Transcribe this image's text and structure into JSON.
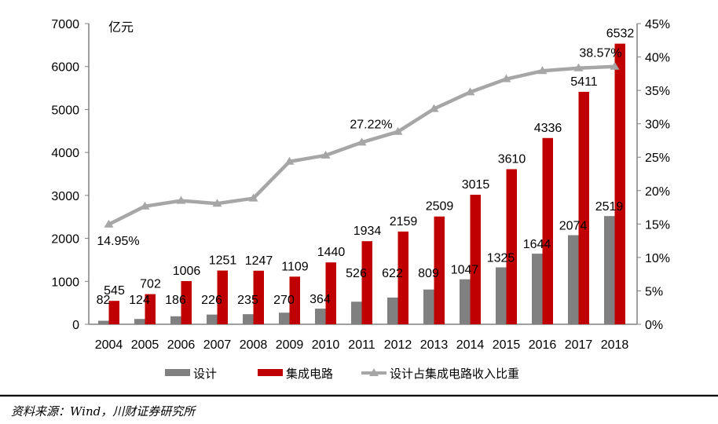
{
  "chart_data": {
    "type": "bar",
    "unit_label": "亿元",
    "categories": [
      "2004",
      "2005",
      "2006",
      "2007",
      "2008",
      "2009",
      "2010",
      "2011",
      "2012",
      "2013",
      "2014",
      "2015",
      "2016",
      "2017",
      "2018"
    ],
    "series": [
      {
        "name": "设计",
        "type": "bar",
        "axis": "left",
        "color": "#808080",
        "values": [
          82,
          124,
          186,
          226,
          235,
          270,
          364,
          526,
          622,
          809,
          1047,
          1325,
          1644,
          2074,
          2519
        ]
      },
      {
        "name": "集成电路",
        "type": "bar",
        "axis": "left",
        "color": "#C00000",
        "values": [
          545,
          702,
          1006,
          1251,
          1247,
          1109,
          1440,
          1934,
          2159,
          2509,
          3015,
          3610,
          4336,
          5411,
          6532
        ]
      },
      {
        "name": "设计占集成电路收入比重",
        "type": "line",
        "axis": "right",
        "color": "#A6A6A6",
        "marker": "triangle",
        "values": [
          14.95,
          17.66,
          18.49,
          18.07,
          18.85,
          24.35,
          25.28,
          27.22,
          28.81,
          32.24,
          34.73,
          36.7,
          37.92,
          38.33,
          38.57
        ]
      }
    ],
    "line_annotations": [
      {
        "category": "2004",
        "label": "14.95%"
      },
      {
        "category": "2011",
        "label": "27.22%"
      },
      {
        "category": "2018",
        "label": "38.57%"
      }
    ],
    "left_axis": {
      "ylim": [
        0,
        7000
      ],
      "ticks": [
        "0",
        "1000",
        "2000",
        "3000",
        "4000",
        "5000",
        "6000",
        "7000"
      ]
    },
    "right_axis": {
      "ylim": [
        0,
        45
      ],
      "ticks": [
        "0%",
        "5%",
        "10%",
        "15%",
        "20%",
        "25%",
        "30%",
        "35%",
        "40%",
        "45%"
      ]
    },
    "grid": false,
    "legend_position": "bottom"
  },
  "source": "资料来源：Wind，川财证券研究所"
}
